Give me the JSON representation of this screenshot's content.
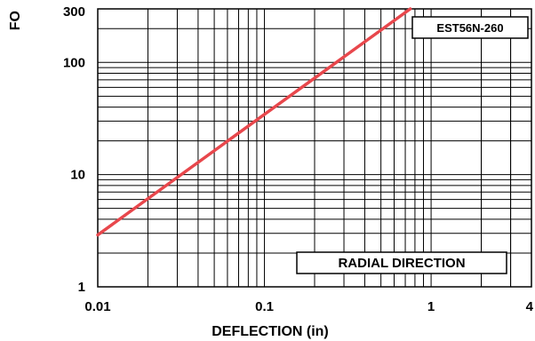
{
  "chart_data": {
    "type": "line",
    "xlabel": "DEFLECTION (in)",
    "ylabel": "FO",
    "x_scale": "log",
    "y_scale": "log",
    "xlim": [
      0.01,
      4
    ],
    "ylim": [
      1,
      300
    ],
    "x_ticks": [
      {
        "value": 0.01,
        "label": "0.01"
      },
      {
        "value": 0.1,
        "label": "0.1"
      },
      {
        "value": 1,
        "label": "1"
      },
      {
        "value": 4,
        "label": "4"
      }
    ],
    "y_ticks": [
      {
        "value": 1,
        "label": "1"
      },
      {
        "value": 10,
        "label": "10"
      },
      {
        "value": 100,
        "label": "100"
      },
      {
        "value": 300,
        "label": "300"
      }
    ],
    "grid": true,
    "series": [
      {
        "name": "EST56N-260",
        "color": "#e8474c",
        "x": [
          0.01,
          0.75
        ],
        "y": [
          2.9,
          300
        ]
      }
    ],
    "annotations": [
      {
        "text": "RADIAL DIRECTION"
      }
    ]
  }
}
